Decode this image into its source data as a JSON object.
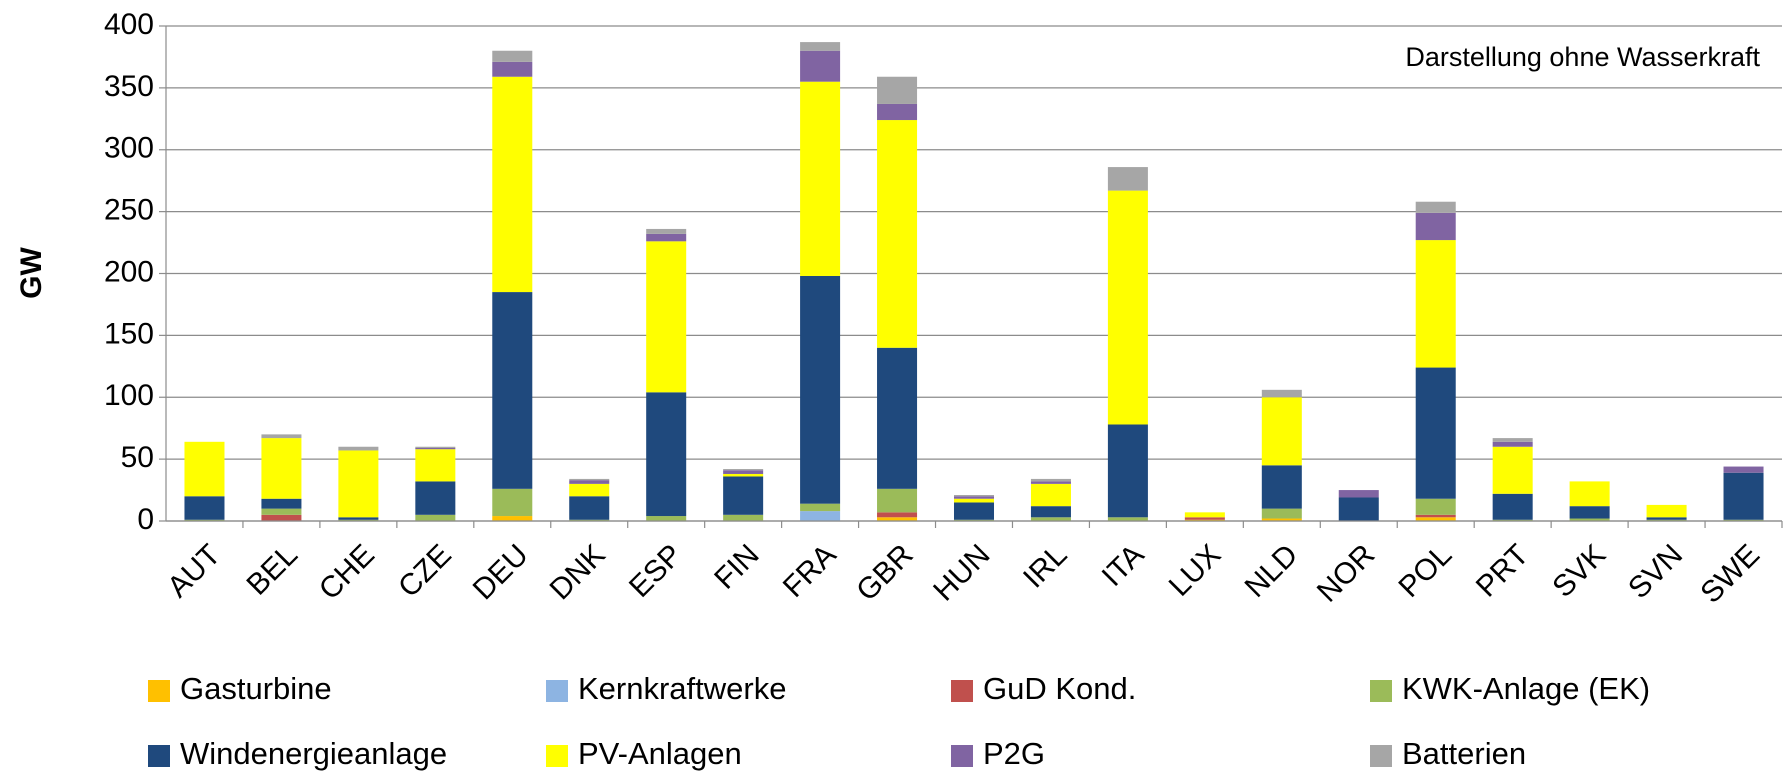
{
  "chart_data": {
    "type": "stacked_bar",
    "y_label": "GW",
    "annotation": "Darstellung ohne Wasserkraft",
    "categories": [
      "AUT",
      "BEL",
      "CHE",
      "CZE",
      "DEU",
      "DNK",
      "ESP",
      "FIN",
      "FRA",
      "GBR",
      "HUN",
      "IRL",
      "ITA",
      "LUX",
      "NLD",
      "NOR",
      "POL",
      "PRT",
      "SVK",
      "SVN",
      "SWE"
    ],
    "series": [
      {
        "name": "Gasturbine",
        "color": "#FFC000",
        "values": [
          0,
          0,
          0,
          0,
          4,
          0,
          0,
          0,
          0,
          3,
          0,
          0,
          0,
          1,
          2,
          0,
          3,
          0,
          0,
          0,
          0
        ]
      },
      {
        "name": "Kernkraftwerke",
        "color": "#8DB4E2",
        "values": [
          0,
          0,
          0,
          0,
          0,
          0,
          0,
          0,
          8,
          0,
          0,
          0,
          0,
          0,
          0,
          0,
          0,
          0,
          0,
          0,
          0
        ]
      },
      {
        "name": "GuD Kond.",
        "color": "#C0504D",
        "values": [
          0,
          5,
          0,
          0,
          0,
          0,
          0,
          0,
          0,
          4,
          0,
          0,
          0,
          2,
          0,
          0,
          2,
          0,
          0,
          0,
          0
        ]
      },
      {
        "name": "KWK-Anlage (EK)",
        "color": "#9BBB59",
        "values": [
          1,
          5,
          1,
          5,
          22,
          1,
          4,
          5,
          6,
          19,
          1,
          3,
          3,
          0,
          8,
          0,
          13,
          1,
          2,
          1,
          1
        ]
      },
      {
        "name": "Windenergieanlage",
        "color": "#1F497D",
        "values": [
          19,
          8,
          2,
          27,
          159,
          19,
          100,
          31,
          184,
          114,
          14,
          9,
          75,
          0,
          35,
          19,
          106,
          21,
          10,
          2,
          38
        ]
      },
      {
        "name": "PV-Anlagen",
        "color": "#FFFF00",
        "values": [
          44,
          49,
          54,
          26,
          174,
          10,
          122,
          2,
          157,
          184,
          3,
          18,
          189,
          4,
          55,
          0,
          103,
          38,
          20,
          10,
          0
        ]
      },
      {
        "name": "P2G",
        "color": "#8064A2",
        "values": [
          0,
          0,
          0,
          1,
          12,
          3,
          6,
          3,
          25,
          13,
          2,
          2,
          0,
          0,
          0,
          6,
          22,
          4,
          0,
          0,
          5
        ]
      },
      {
        "name": "Batterien",
        "color": "#A6A6A6",
        "values": [
          0,
          3,
          3,
          1,
          9,
          1,
          4,
          1,
          7,
          22,
          1,
          2,
          19,
          0,
          6,
          0,
          9,
          3,
          0,
          0,
          0
        ]
      }
    ],
    "ylim": [
      0,
      400
    ],
    "yticks": [
      0,
      50,
      100,
      150,
      200,
      250,
      300,
      350,
      400
    ],
    "grid": true
  }
}
